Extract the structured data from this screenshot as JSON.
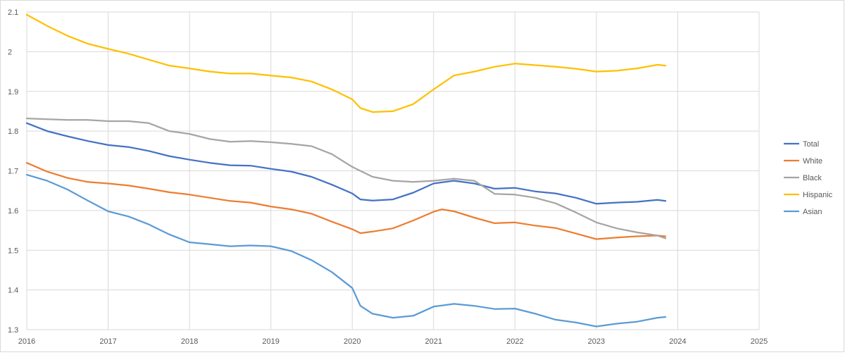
{
  "chart_data": {
    "type": "line",
    "title": "",
    "xlabel": "",
    "ylabel": "",
    "xlim": [
      2016,
      2025
    ],
    "ylim": [
      1.3,
      2.1
    ],
    "x_ticks": [
      "2016",
      "2017",
      "2018",
      "2019",
      "2020",
      "2021",
      "2022",
      "2023",
      "2024",
      "2025"
    ],
    "y_ticks": [
      "1.3",
      "1.4",
      "1.5",
      "1.6",
      "1.7",
      "1.8",
      "1.9",
      "2",
      "2.1"
    ],
    "grid": "horizontal and vertical",
    "legend_position": "right",
    "series": [
      {
        "name": "Total",
        "color": "#4472c4",
        "x": [
          2016.0,
          2016.25,
          2016.5,
          2016.75,
          2017.0,
          2017.25,
          2017.5,
          2017.75,
          2018.0,
          2018.25,
          2018.5,
          2018.75,
          2019.0,
          2019.25,
          2019.5,
          2019.75,
          2020.0,
          2020.1,
          2020.25,
          2020.5,
          2020.75,
          2021.0,
          2021.25,
          2021.5,
          2021.75,
          2022.0,
          2022.25,
          2022.5,
          2022.75,
          2023.0,
          2023.25,
          2023.5,
          2023.75,
          2023.85
        ],
        "y": [
          1.82,
          1.8,
          1.787,
          1.775,
          1.765,
          1.76,
          1.75,
          1.737,
          1.728,
          1.72,
          1.714,
          1.713,
          1.705,
          1.698,
          1.685,
          1.665,
          1.643,
          1.628,
          1.625,
          1.628,
          1.645,
          1.668,
          1.675,
          1.668,
          1.655,
          1.657,
          1.648,
          1.643,
          1.632,
          1.617,
          1.62,
          1.622,
          1.627,
          1.624
        ]
      },
      {
        "name": "White",
        "color": "#ed7d31",
        "x": [
          2016.0,
          2016.25,
          2016.5,
          2016.75,
          2017.0,
          2017.25,
          2017.5,
          2017.75,
          2018.0,
          2018.25,
          2018.5,
          2018.75,
          2019.0,
          2019.25,
          2019.5,
          2019.75,
          2020.0,
          2020.1,
          2020.25,
          2020.5,
          2020.75,
          2021.0,
          2021.1,
          2021.25,
          2021.5,
          2021.75,
          2022.0,
          2022.25,
          2022.5,
          2022.75,
          2023.0,
          2023.25,
          2023.5,
          2023.75,
          2023.85
        ],
        "y": [
          1.72,
          1.698,
          1.682,
          1.672,
          1.668,
          1.663,
          1.655,
          1.646,
          1.64,
          1.632,
          1.624,
          1.62,
          1.61,
          1.603,
          1.592,
          1.572,
          1.553,
          1.543,
          1.547,
          1.555,
          1.575,
          1.597,
          1.603,
          1.598,
          1.582,
          1.568,
          1.57,
          1.562,
          1.556,
          1.542,
          1.528,
          1.532,
          1.535,
          1.537,
          1.535
        ]
      },
      {
        "name": "Black",
        "color": "#a5a5a5",
        "x": [
          2016.0,
          2016.25,
          2016.5,
          2016.75,
          2017.0,
          2017.25,
          2017.5,
          2017.75,
          2018.0,
          2018.25,
          2018.5,
          2018.75,
          2019.0,
          2019.25,
          2019.5,
          2019.75,
          2020.0,
          2020.25,
          2020.5,
          2020.75,
          2021.0,
          2021.25,
          2021.5,
          2021.75,
          2022.0,
          2022.25,
          2022.5,
          2022.75,
          2023.0,
          2023.25,
          2023.5,
          2023.75,
          2023.85
        ],
        "y": [
          1.832,
          1.83,
          1.828,
          1.828,
          1.825,
          1.825,
          1.82,
          1.8,
          1.793,
          1.78,
          1.773,
          1.775,
          1.772,
          1.768,
          1.762,
          1.742,
          1.71,
          1.685,
          1.675,
          1.672,
          1.675,
          1.68,
          1.675,
          1.642,
          1.64,
          1.632,
          1.618,
          1.595,
          1.57,
          1.555,
          1.545,
          1.537,
          1.53
        ]
      },
      {
        "name": "Hispanic",
        "color": "#ffc000",
        "x": [
          2016.0,
          2016.25,
          2016.5,
          2016.75,
          2017.0,
          2017.25,
          2017.5,
          2017.75,
          2018.0,
          2018.25,
          2018.5,
          2018.75,
          2019.0,
          2019.25,
          2019.5,
          2019.75,
          2020.0,
          2020.1,
          2020.25,
          2020.5,
          2020.75,
          2021.0,
          2021.25,
          2021.5,
          2021.75,
          2022.0,
          2022.25,
          2022.5,
          2022.75,
          2023.0,
          2023.25,
          2023.5,
          2023.75,
          2023.85
        ],
        "y": [
          2.093,
          2.065,
          2.04,
          2.02,
          2.007,
          1.995,
          1.98,
          1.965,
          1.958,
          1.95,
          1.945,
          1.945,
          1.94,
          1.935,
          1.925,
          1.905,
          1.88,
          1.858,
          1.848,
          1.85,
          1.868,
          1.905,
          1.94,
          1.95,
          1.962,
          1.97,
          1.966,
          1.962,
          1.957,
          1.95,
          1.952,
          1.958,
          1.967,
          1.965
        ]
      },
      {
        "name": "Asian",
        "color": "#5b9bd5",
        "x": [
          2016.0,
          2016.25,
          2016.5,
          2016.75,
          2017.0,
          2017.25,
          2017.5,
          2017.75,
          2018.0,
          2018.25,
          2018.5,
          2018.75,
          2019.0,
          2019.25,
          2019.5,
          2019.75,
          2020.0,
          2020.1,
          2020.25,
          2020.5,
          2020.75,
          2021.0,
          2021.25,
          2021.5,
          2021.75,
          2022.0,
          2022.25,
          2022.5,
          2022.75,
          2023.0,
          2023.25,
          2023.5,
          2023.75,
          2023.85
        ],
        "y": [
          1.69,
          1.675,
          1.653,
          1.625,
          1.598,
          1.585,
          1.565,
          1.54,
          1.52,
          1.515,
          1.51,
          1.512,
          1.51,
          1.498,
          1.475,
          1.445,
          1.405,
          1.36,
          1.34,
          1.33,
          1.335,
          1.358,
          1.365,
          1.36,
          1.352,
          1.353,
          1.34,
          1.325,
          1.318,
          1.308,
          1.315,
          1.32,
          1.33,
          1.332
        ]
      }
    ]
  }
}
